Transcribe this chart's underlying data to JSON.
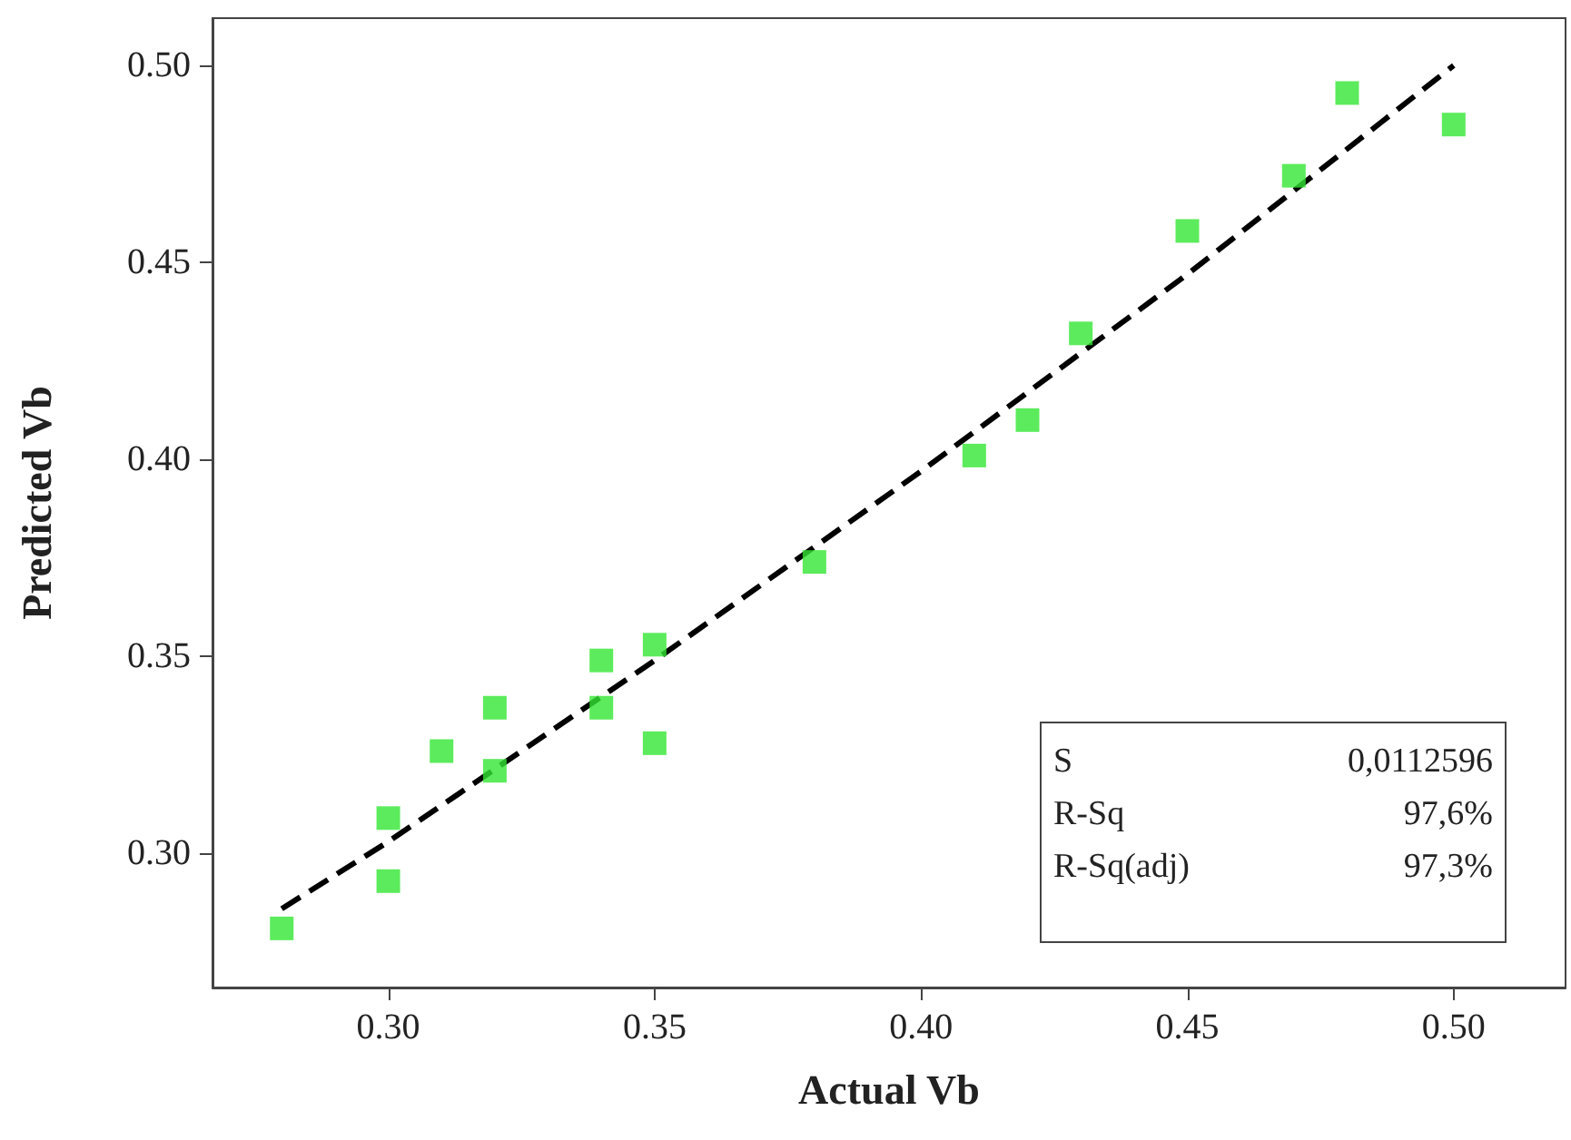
{
  "chart_data": {
    "type": "scatter",
    "xlabel": "Actual Vb",
    "ylabel": "Predicted Vb",
    "x": [
      0.28,
      0.3,
      0.3,
      0.31,
      0.32,
      0.32,
      0.34,
      0.34,
      0.35,
      0.35,
      0.38,
      0.41,
      0.42,
      0.43,
      0.45,
      0.47,
      0.48,
      0.5
    ],
    "series": [
      {
        "color": "#33e633",
        "marker": "square",
        "values": [
          0.281,
          0.309,
          0.293,
          0.326,
          0.337,
          0.321,
          0.349,
          0.337,
          0.353,
          0.328,
          0.374,
          0.401,
          0.41,
          0.432,
          0.458,
          0.472,
          0.493,
          0.485
        ]
      },
      {
        "type": "line",
        "color": "#000000",
        "line_style": "dashed",
        "marker": "none",
        "x": [
          0.28,
          0.3,
          0.35,
          0.4,
          0.45,
          0.5
        ],
        "values": [
          0.286,
          0.303,
          0.349,
          0.397,
          0.447,
          0.5
        ]
      }
    ],
    "xlim": [
      0.267,
      0.521
    ],
    "ylim": [
      0.266,
      0.512
    ],
    "xticks": [
      {
        "value": 0.3,
        "label": "0.30"
      },
      {
        "value": 0.35,
        "label": "0.35"
      },
      {
        "value": 0.4,
        "label": "0.40"
      },
      {
        "value": 0.45,
        "label": "0.45"
      },
      {
        "value": 0.5,
        "label": "0.50"
      }
    ],
    "yticks": [
      {
        "value": 0.3,
        "label": "0.30"
      },
      {
        "value": 0.35,
        "label": "0.35"
      },
      {
        "value": 0.4,
        "label": "0.40"
      },
      {
        "value": 0.45,
        "label": "0.45"
      },
      {
        "value": 0.5,
        "label": "0.50"
      }
    ],
    "grid": false,
    "annotations": [
      "S",
      "0,0112596",
      "R-Sq",
      "97,6%",
      "R-Sq(adj)",
      "97,3%"
    ]
  }
}
